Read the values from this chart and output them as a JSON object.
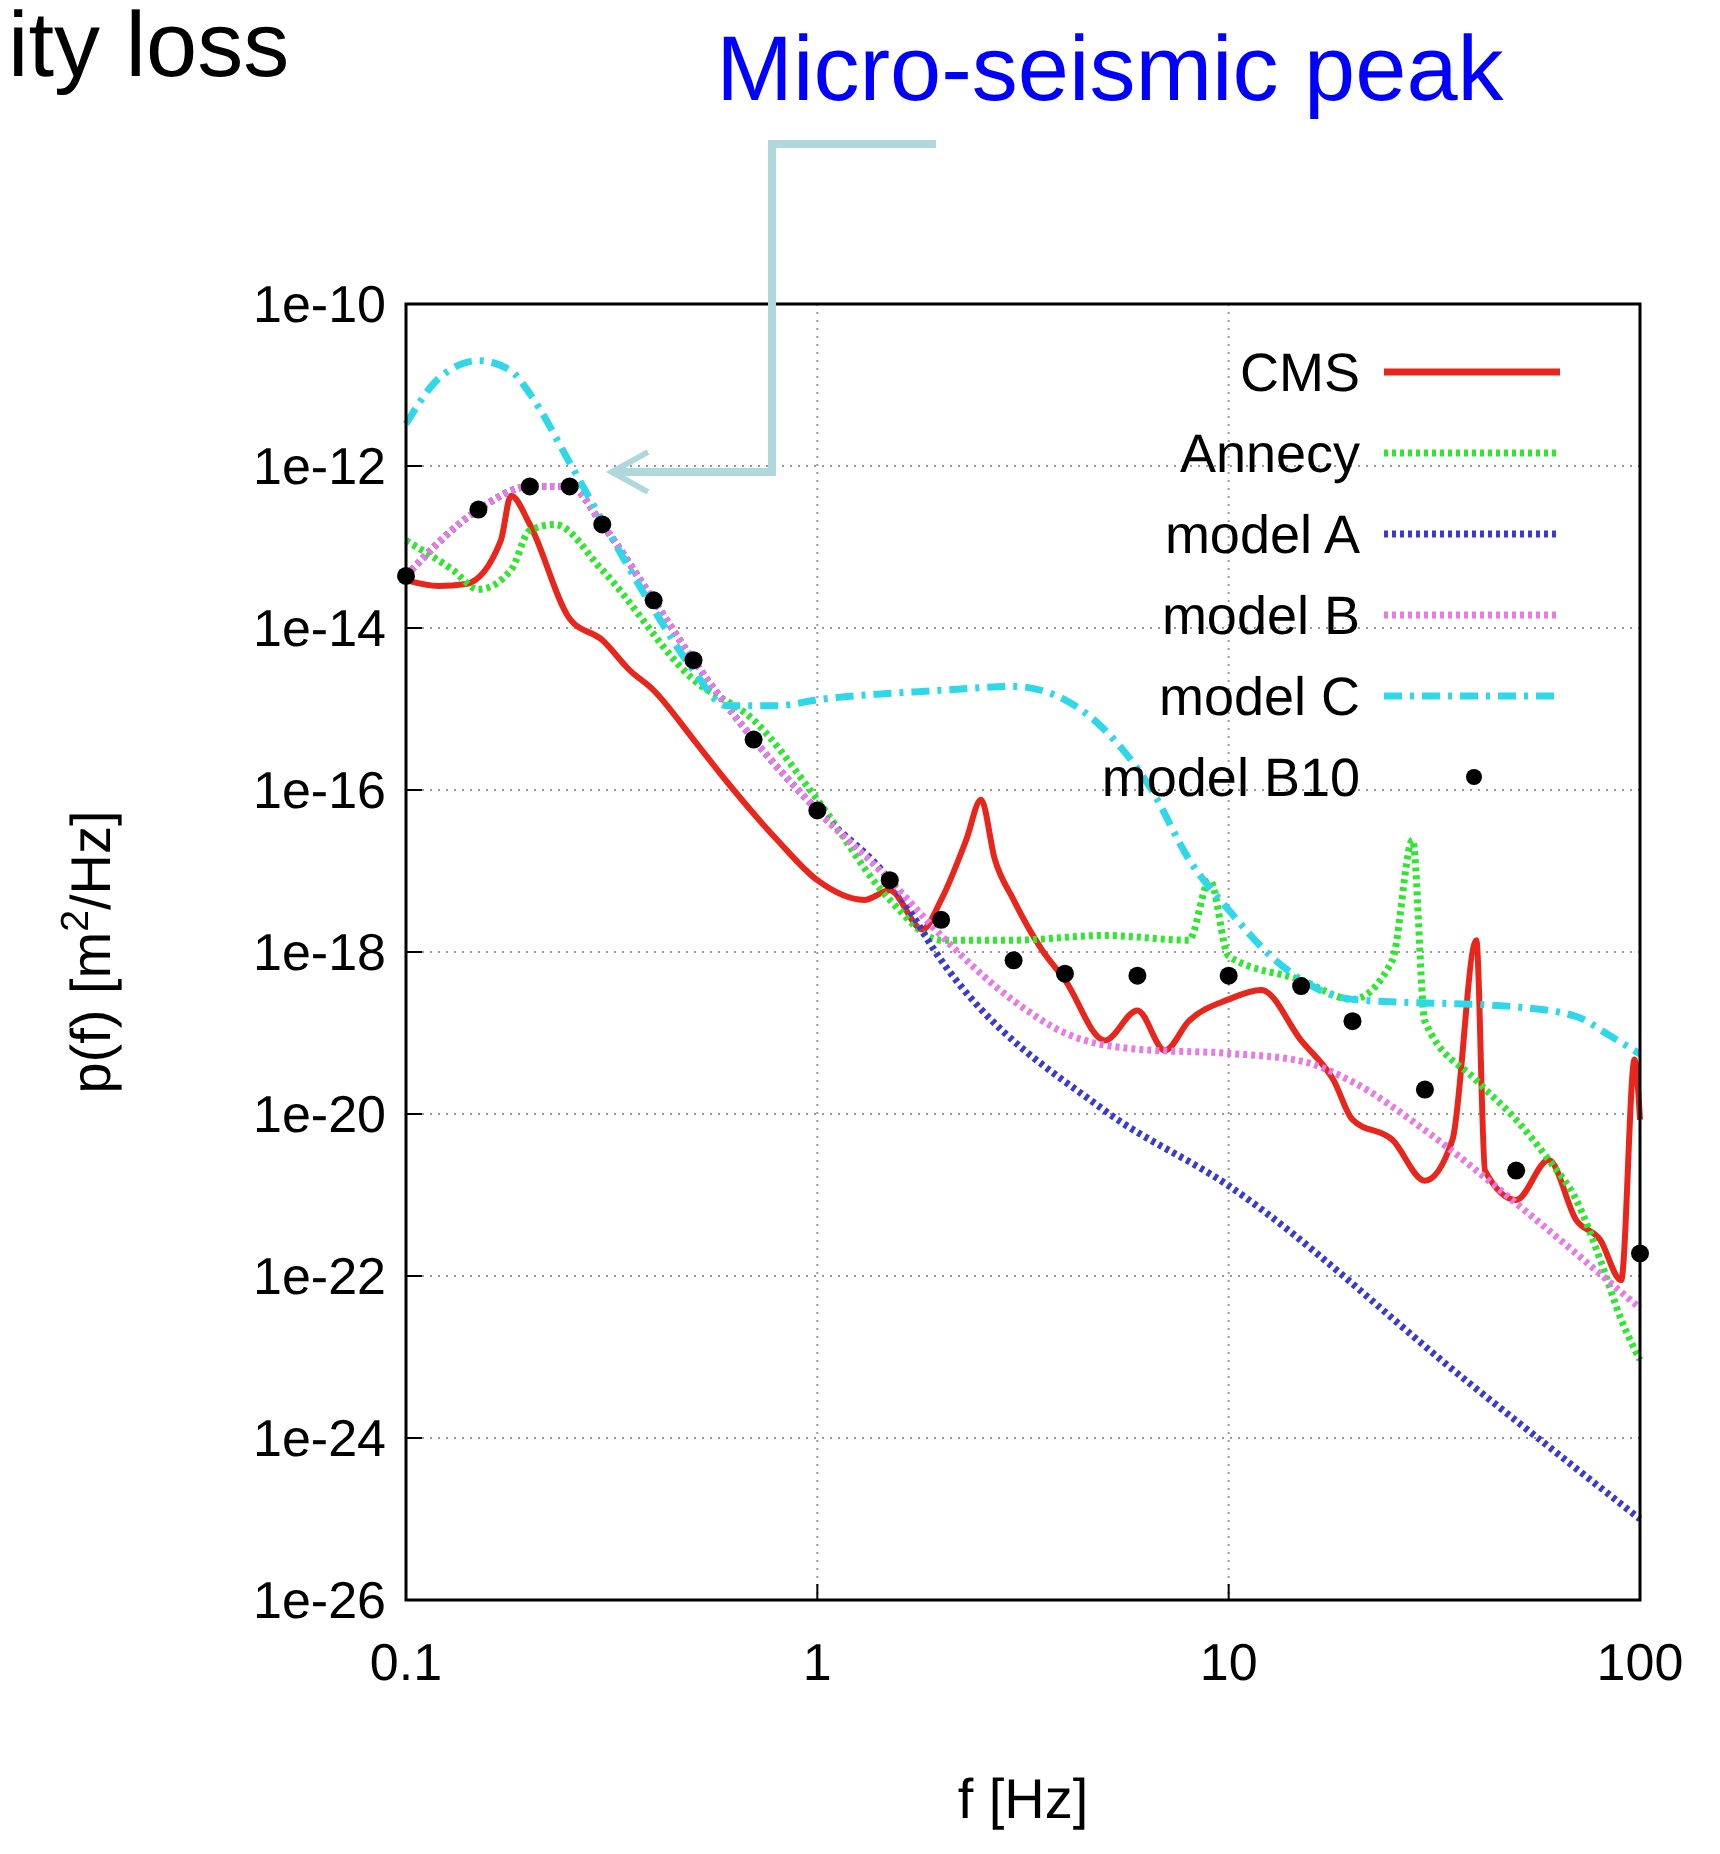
{
  "chart_data": {
    "type": "line",
    "xlabel": "f [Hz]",
    "ylabel": "p(f) [m$^{2}$/Hz]",
    "log": "xy",
    "grid": true,
    "legend": "top right",
    "annotations": [
      "ity loss",
      "Micro-seismic peak"
    ],
    "xlim": [
      0.1,
      100
    ],
    "xticks": [
      0.1,
      1,
      10,
      100
    ],
    "ylim": [
      1e-26,
      1e-10
    ],
    "yticks": [
      {
        "value": 1e-26,
        "label": "1e-26"
      },
      {
        "value": 1e-24,
        "label": "1e-24"
      },
      {
        "value": 1e-22,
        "label": "1e-22"
      },
      {
        "value": 1e-20,
        "label": "1e-20"
      },
      {
        "value": 1e-18,
        "label": "1e-18"
      },
      {
        "value": 1e-16,
        "label": "1e-16"
      },
      {
        "value": 1e-14,
        "label": "1e-14"
      },
      {
        "value": 1e-12,
        "label": "1e-12"
      },
      {
        "value": 1e-10,
        "label": "1e-10"
      }
    ],
    "series": [
      {
        "name": "CMS",
        "color": "#e8261c",
        "line_style": "solid",
        "x": [
          0.1,
          0.12,
          0.14,
          0.17,
          0.18,
          0.2,
          0.25,
          0.3,
          0.35,
          0.4,
          0.5,
          0.6,
          0.8,
          1,
          1.3,
          1.5,
          1.8,
          2,
          2.3,
          2.5,
          2.7,
          3,
          3.5,
          4,
          5,
          6,
          7,
          8,
          10,
          12,
          15,
          18,
          20,
          25,
          30,
          35,
          40,
          42,
          50,
          60,
          70,
          80,
          90,
          97,
          100
        ],
        "values": [
          3.9e-14,
          3.3e-14,
          3.5e-14,
          1.2e-13,
          4.3e-13,
          1.9e-13,
          1.3e-14,
          7.1e-15,
          3e-15,
          1.7e-15,
          4.2e-16,
          1.3e-16,
          2.4e-17,
          7.7e-18,
          4.4e-18,
          5.8e-18,
          1.9e-18,
          4.4e-18,
          2.4e-17,
          7.6e-17,
          1.4e-17,
          4.4e-18,
          1.1e-18,
          4.5e-19,
          8.1e-20,
          1.9e-19,
          6.1e-20,
          1.4e-19,
          2.6e-19,
          3.4e-19,
          8.1e-20,
          2.6e-20,
          8.5e-21,
          4.8e-21,
          1.5e-21,
          4.8e-21,
          1.4e-18,
          2e-21,
          8.7e-22,
          2.7e-21,
          4.9e-22,
          2.8e-22,
          8.9e-23,
          4.7e-20,
          8.5e-21
        ]
      },
      {
        "name": "Annecy",
        "color": "#2ee82e",
        "line_style": "dotted",
        "x": [
          0.1,
          0.13,
          0.15,
          0.18,
          0.2,
          0.23,
          0.3,
          0.5,
          0.7,
          1,
          1.5,
          2,
          3,
          5,
          8,
          9,
          10,
          15,
          20,
          25,
          28,
          30,
          40,
          50,
          60,
          70,
          80,
          90,
          100
        ],
        "values": [
          1.2e-13,
          5.2e-14,
          3e-14,
          5.2e-14,
          1.6e-13,
          1.9e-13,
          5.2e-14,
          2.3e-15,
          7.3e-16,
          7.6e-17,
          4.4e-18,
          1.4e-18,
          1.4e-18,
          1.6e-18,
          1.4e-18,
          7.7e-18,
          8.9e-19,
          4.5e-19,
          2.6e-19,
          7.9e-19,
          2.4e-17,
          1.4e-19,
          2.6e-20,
          8.5e-21,
          2.7e-21,
          8.7e-22,
          1.6e-22,
          2.9e-23,
          9.2e-24
        ]
      },
      {
        "name": "model A",
        "color": "#3a3ad0",
        "line_style": "dotted",
        "x": [
          0.1,
          0.15,
          0.2,
          0.25,
          0.3,
          0.4,
          0.5,
          0.7,
          1,
          1.5,
          2,
          5,
          10,
          38,
          100
        ],
        "values": [
          4.4e-14,
          2.9e-13,
          5.6e-13,
          5.6e-13,
          1.9e-13,
          2.2e-14,
          4e-15,
          4.2e-16,
          5.6e-17,
          7.7e-18,
          7.9e-19,
          1.1e-20,
          1.3e-21,
          5e-24,
          1e-25
        ]
      },
      {
        "name": "model B",
        "color": "#e87ae8",
        "line_style": "dotted",
        "x": [
          0.1,
          0.15,
          0.2,
          0.25,
          0.3,
          0.4,
          0.5,
          0.7,
          1,
          1.5,
          2,
          3,
          4,
          6,
          10,
          15,
          20,
          30,
          50,
          100
        ],
        "values": [
          4.4e-14,
          2.9e-13,
          5.6e-13,
          5.6e-13,
          1.9e-13,
          2.2e-14,
          4e-15,
          4.2e-16,
          5.6e-17,
          7.7e-18,
          1.6e-18,
          2.5e-19,
          1e-19,
          6.3e-20,
          5.6e-20,
          4.5e-20,
          2.5e-20,
          6.3e-21,
          7.9e-22,
          4e-23
        ]
      },
      {
        "name": "model C",
        "color": "#2ed8e8",
        "line_style": "dashed",
        "x": [
          0.1,
          0.12,
          0.15,
          0.18,
          0.2,
          0.25,
          0.3,
          0.4,
          0.5,
          0.6,
          0.8,
          1,
          2,
          3,
          4,
          5,
          6.5,
          8,
          10,
          13,
          20,
          50,
          70,
          85,
          100
        ],
        "values": [
          3.3e-12,
          1.2e-11,
          2e-11,
          1.5e-11,
          7.8e-12,
          1.1e-12,
          2.1e-13,
          1.7e-14,
          3e-15,
          1.1e-15,
          1.1e-15,
          1.3e-15,
          1.7e-15,
          1.9e-15,
          1.3e-15,
          5.5e-16,
          1e-16,
          1.4e-17,
          3.3e-18,
          7.9e-19,
          2.6e-19,
          2.1e-19,
          1.6e-19,
          9.1e-20,
          5.5e-20
        ]
      },
      {
        "name": "model B10",
        "color": "#000000",
        "type": "scatter",
        "marker": "circle",
        "x": [
          0.1,
          0.15,
          0.2,
          0.25,
          0.3,
          0.4,
          0.5,
          0.7,
          1,
          1.5,
          2,
          3,
          4,
          6,
          10,
          15,
          20,
          30,
          50,
          100
        ],
        "values": [
          4.4e-14,
          2.9e-13,
          5.6e-13,
          5.6e-13,
          1.9e-13,
          2.2e-14,
          4e-15,
          4.2e-16,
          5.6e-17,
          7.7e-18,
          2.5e-18,
          7.9e-19,
          5.4e-19,
          5.1e-19,
          5.1e-19,
          3.8e-19,
          1.4e-19,
          2e-20,
          2e-21,
          1.9e-22
        ]
      }
    ]
  }
}
